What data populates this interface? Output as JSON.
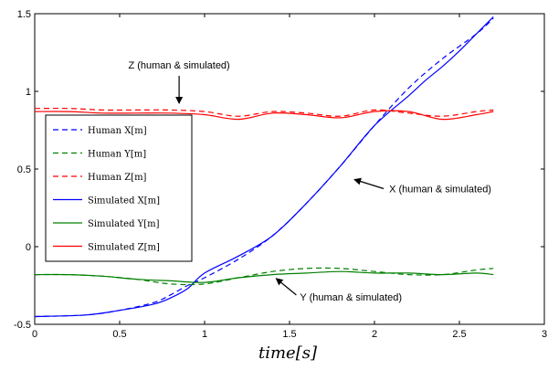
{
  "chart_data": {
    "type": "line",
    "xlabel": "time[s]",
    "ylabel": "",
    "xlim": [
      0,
      3
    ],
    "ylim": [
      -0.5,
      1.5
    ],
    "xticks": [
      0,
      0.5,
      1,
      1.5,
      2,
      2.5,
      3
    ],
    "xtick_labels": [
      "0",
      "0.5",
      "1",
      "1.5",
      "2",
      "2.5",
      "3"
    ],
    "yticks": [
      -0.5,
      0,
      0.5,
      1,
      1.5
    ],
    "ytick_labels": [
      "-0.5",
      "0",
      "0.5",
      "1",
      "1.5"
    ],
    "grid": false,
    "legend_placement": "left",
    "legend": [
      {
        "label": "Human X[m]",
        "color": "#0000ff",
        "dash": true
      },
      {
        "label": "Human Y[m]",
        "color": "#008000",
        "dash": true
      },
      {
        "label": "Human Z[m]",
        "color": "#ff0000",
        "dash": true
      },
      {
        "label": "Simulated X[m]",
        "color": "#0000ff",
        "dash": false
      },
      {
        "label": "Simulated Y[m]",
        "color": "#008000",
        "dash": false
      },
      {
        "label": "Simulated Z[m]",
        "color": "#ff0000",
        "dash": false
      }
    ],
    "series": [
      {
        "name": "Human X[m]",
        "color": "#0000ff",
        "dash": true,
        "x": [
          0,
          0.3,
          0.5,
          0.7,
          0.8,
          0.9,
          1.0,
          1.2,
          1.4,
          1.6,
          1.8,
          2.0,
          2.2,
          2.4,
          2.6,
          2.7
        ],
        "y": [
          -0.45,
          -0.44,
          -0.41,
          -0.36,
          -0.31,
          -0.25,
          -0.2,
          -0.08,
          0.07,
          0.28,
          0.52,
          0.78,
          1.02,
          1.21,
          1.37,
          1.47
        ]
      },
      {
        "name": "Simulated X[m]",
        "color": "#0000ff",
        "dash": false,
        "x": [
          0,
          0.3,
          0.5,
          0.7,
          0.8,
          0.9,
          1.0,
          1.2,
          1.4,
          1.6,
          1.8,
          2.0,
          2.2,
          2.3,
          2.4,
          2.5,
          2.6,
          2.7
        ],
        "y": [
          -0.45,
          -0.44,
          -0.41,
          -0.37,
          -0.33,
          -0.27,
          -0.17,
          -0.06,
          0.07,
          0.28,
          0.52,
          0.78,
          0.97,
          1.07,
          1.16,
          1.26,
          1.37,
          1.48
        ]
      },
      {
        "name": "Human Y[m]",
        "color": "#008000",
        "dash": true,
        "x": [
          0,
          0.2,
          0.4,
          0.6,
          0.8,
          1.0,
          1.2,
          1.4,
          1.6,
          1.8,
          2.0,
          2.2,
          2.4,
          2.6,
          2.7
        ],
        "y": [
          -0.18,
          -0.18,
          -0.19,
          -0.21,
          -0.24,
          -0.24,
          -0.2,
          -0.16,
          -0.14,
          -0.14,
          -0.16,
          -0.18,
          -0.18,
          -0.15,
          -0.14
        ]
      },
      {
        "name": "Simulated Y[m]",
        "color": "#008000",
        "dash": false,
        "x": [
          0,
          0.2,
          0.4,
          0.6,
          0.8,
          1.0,
          1.2,
          1.4,
          1.6,
          1.8,
          2.0,
          2.2,
          2.4,
          2.6,
          2.7
        ],
        "y": [
          -0.18,
          -0.18,
          -0.19,
          -0.21,
          -0.22,
          -0.23,
          -0.2,
          -0.18,
          -0.17,
          -0.16,
          -0.17,
          -0.17,
          -0.18,
          -0.17,
          -0.18
        ]
      },
      {
        "name": "Human Z[m]",
        "color": "#ff0000",
        "dash": true,
        "x": [
          0,
          0.2,
          0.4,
          0.6,
          0.8,
          1.0,
          1.2,
          1.4,
          1.6,
          1.8,
          2.0,
          2.2,
          2.4,
          2.6,
          2.7
        ],
        "y": [
          0.89,
          0.89,
          0.88,
          0.88,
          0.88,
          0.87,
          0.84,
          0.87,
          0.86,
          0.84,
          0.88,
          0.86,
          0.84,
          0.87,
          0.88
        ]
      },
      {
        "name": "Simulated Z[m]",
        "color": "#ff0000",
        "dash": false,
        "x": [
          0,
          0.2,
          0.4,
          0.6,
          0.8,
          1.0,
          1.2,
          1.4,
          1.6,
          1.8,
          2.0,
          2.2,
          2.4,
          2.6,
          2.7
        ],
        "y": [
          0.87,
          0.87,
          0.86,
          0.86,
          0.86,
          0.85,
          0.82,
          0.86,
          0.85,
          0.83,
          0.87,
          0.87,
          0.82,
          0.85,
          0.87
        ]
      }
    ],
    "annotations": [
      {
        "text": "Z (human & simulated)",
        "x": 0.85,
        "y": 0.9
      },
      {
        "text": "X (human & simulated)",
        "x": 1.85,
        "y": 0.45
      },
      {
        "text": "Y (human & simulated)",
        "x": 1.4,
        "y": -0.17
      }
    ]
  }
}
